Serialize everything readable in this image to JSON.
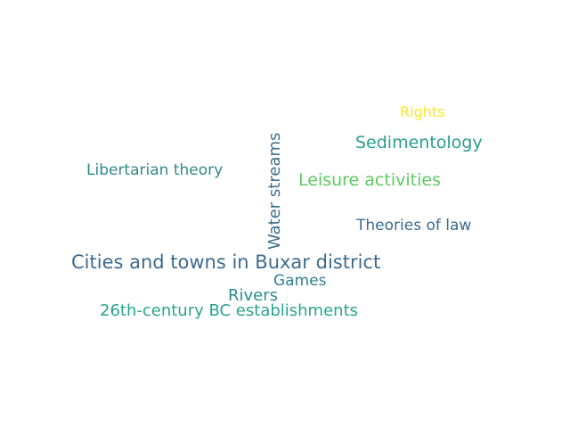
{
  "word_cloud": {
    "words": [
      {
        "text": "Rights",
        "color": "#fde725"
      },
      {
        "text": "Sedimentology",
        "color": "#2a9d8f"
      },
      {
        "text": "Libertarian theory",
        "color": "#2f8a8c"
      },
      {
        "text": "Water streams",
        "color": "#3e6f8c"
      },
      {
        "text": "Leisure activities",
        "color": "#5ec962"
      },
      {
        "text": "Theories of law",
        "color": "#3b6b8e"
      },
      {
        "text": "Cities and towns in Buxar district",
        "color": "#3e6a8d"
      },
      {
        "text": "Games",
        "color": "#2f7f8e"
      },
      {
        "text": "Rivers",
        "color": "#2c8c8d"
      },
      {
        "text": "26th-century BC establishments",
        "color": "#28a58c"
      }
    ]
  }
}
